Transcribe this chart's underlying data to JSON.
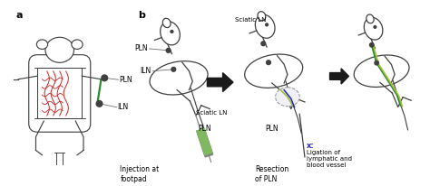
{
  "title_a": "a",
  "title_b": "b",
  "bg_color": "#ffffff",
  "fig_width": 4.74,
  "fig_height": 2.06,
  "dpi": 100,
  "labels": {
    "PLN_a": "PLN",
    "ILN_a": "ILN",
    "PLN_b1": "PLN",
    "ILN_b1": "ILN",
    "sciatic_b1": "Sciatic LN",
    "PLN_b2": "PLN",
    "injection": "Injection at\nfootpad",
    "resection": "Resection\nof PLN",
    "ligation": "x: Ligation of\nlymphatic and\nblood vessel"
  },
  "colors": {
    "outline": "#404040",
    "red_vessel": "#cc2222",
    "green_vessel": "#2d8a2d",
    "blue_vessel": "#2222cc",
    "yellow_green": "#a8c040",
    "node_fill": "#404040",
    "arrow_fill": "#1a1a1a",
    "syringe_green": "#80b860",
    "annotation_line": "#707070",
    "dashed_oval": "#909090"
  }
}
